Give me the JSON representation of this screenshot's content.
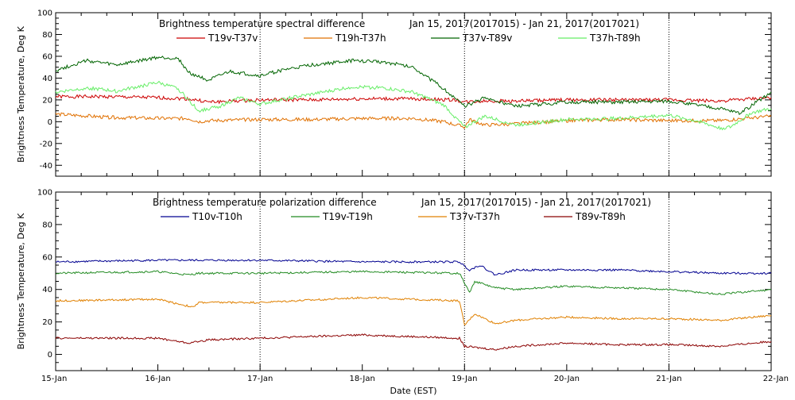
{
  "xaxis": {
    "label": "Date (EST)",
    "ticks": [
      "15-Jan",
      "16-Jan",
      "17-Jan",
      "18-Jan",
      "19-Jan",
      "20-Jan",
      "21-Jan",
      "22-Jan"
    ],
    "range": [
      15,
      22
    ]
  },
  "chart_data": [
    {
      "type": "line",
      "title": "Brightness temperature spectral difference",
      "subtitle": "Jan 15, 2017(2017015) - Jan 21, 2017(2017021)",
      "ylabel": "Brightness Temperature, Deg K",
      "ylim": [
        -50,
        100
      ],
      "yticks": [
        -40,
        -20,
        0,
        20,
        40,
        60,
        80,
        100
      ],
      "vgrid": [
        17,
        19,
        21
      ],
      "legend_placement": "top",
      "series": [
        {
          "name": "T19v-T37v",
          "color": "#cc0000",
          "x": [
            15,
            15.5,
            16,
            16.3,
            16.5,
            17,
            17.5,
            18,
            18.5,
            18.9,
            19,
            19.2,
            19.5,
            20,
            20.5,
            21,
            21.5,
            22
          ],
          "y": [
            23,
            23,
            22,
            21,
            18,
            20,
            20,
            21,
            21,
            20,
            18,
            19,
            19,
            20,
            20,
            20,
            19,
            22
          ]
        },
        {
          "name": "T19h-T37h",
          "color": "#e07000",
          "x": [
            15,
            15.5,
            16,
            16.3,
            16.4,
            16.5,
            17,
            17.5,
            18,
            18.5,
            18.8,
            19,
            19.05,
            19.2,
            19.5,
            20,
            20.5,
            21,
            21.5,
            22
          ],
          "y": [
            7,
            4,
            3,
            3,
            0,
            1,
            2,
            2,
            3,
            3,
            0,
            -5,
            2,
            -3,
            -2,
            1,
            2,
            1,
            1,
            5
          ]
        },
        {
          "name": "T37v-T89v",
          "color": "#006400",
          "x": [
            15,
            15.3,
            15.6,
            16,
            16.2,
            16.3,
            16.5,
            16.7,
            17,
            17.2,
            17.5,
            17.9,
            18.2,
            18.5,
            18.8,
            19,
            19.2,
            19.5,
            20,
            20.5,
            21,
            21.3,
            21.5,
            21.7,
            22
          ],
          "y": [
            47,
            56,
            52,
            59,
            58,
            45,
            38,
            46,
            42,
            47,
            52,
            56,
            55,
            50,
            30,
            14,
            22,
            14,
            18,
            18,
            19,
            15,
            12,
            8,
            27
          ]
        },
        {
          "name": "T37h-T89h",
          "color": "#66ee66",
          "x": [
            15,
            15.3,
            15.6,
            16,
            16.2,
            16.4,
            16.6,
            16.8,
            17,
            17.3,
            17.5,
            17.9,
            18.2,
            18.5,
            18.8,
            19,
            19.2,
            19.5,
            20,
            20.5,
            21,
            21.3,
            21.5,
            21.6,
            21.8,
            22
          ],
          "y": [
            27,
            31,
            28,
            36,
            30,
            10,
            14,
            22,
            16,
            22,
            25,
            32,
            31,
            27,
            15,
            -5,
            5,
            -3,
            2,
            3,
            6,
            0,
            -6,
            -5,
            8,
            12
          ]
        }
      ]
    },
    {
      "type": "line",
      "title": "Brightness temperature polarization difference",
      "subtitle": "Jan 15, 2017(2017015) - Jan 21, 2017(2017021)",
      "ylabel": "Brightness Temperature, Deg K",
      "ylim": [
        -10,
        100
      ],
      "yticks": [
        0,
        20,
        40,
        60,
        80,
        100
      ],
      "vgrid": [
        17,
        19,
        21
      ],
      "legend_placement": "top",
      "series": [
        {
          "name": "T10v-T10h",
          "color": "#000090",
          "x": [
            15,
            16,
            17,
            18,
            18.95,
            19.05,
            19.15,
            19.3,
            19.5,
            20,
            20.5,
            21,
            21.5,
            22
          ],
          "y": [
            57,
            58,
            58,
            57,
            57,
            52,
            55,
            49,
            52,
            52,
            52,
            51,
            50,
            50
          ]
        },
        {
          "name": "T19v-T19h",
          "color": "#228b22",
          "x": [
            15,
            16,
            16.3,
            16.4,
            17,
            18,
            18.95,
            19.05,
            19.1,
            19.3,
            19.5,
            20,
            20.5,
            21,
            21.5,
            22
          ],
          "y": [
            50,
            51,
            49,
            50,
            50,
            51,
            50,
            38,
            45,
            41,
            40,
            42,
            41,
            40,
            37,
            40
          ]
        },
        {
          "name": "T37v-T37h",
          "color": "#e08000",
          "x": [
            15,
            16,
            16.35,
            16.4,
            17,
            18,
            18.95,
            19.0,
            19.1,
            19.3,
            19.5,
            20,
            20.5,
            21,
            21.5,
            22
          ],
          "y": [
            33,
            34,
            29,
            32,
            32,
            35,
            33,
            18,
            25,
            19,
            21,
            23,
            22,
            22,
            21,
            24
          ]
        },
        {
          "name": "T89v-T89h",
          "color": "#8b0000",
          "x": [
            15,
            16,
            16.3,
            16.5,
            17,
            18,
            18.95,
            19.0,
            19.3,
            19.5,
            20,
            20.5,
            21,
            21.5,
            22
          ],
          "y": [
            10,
            10,
            7,
            9,
            10,
            12,
            10,
            5,
            3,
            5,
            7,
            6,
            6,
            5,
            8
          ]
        }
      ]
    }
  ]
}
